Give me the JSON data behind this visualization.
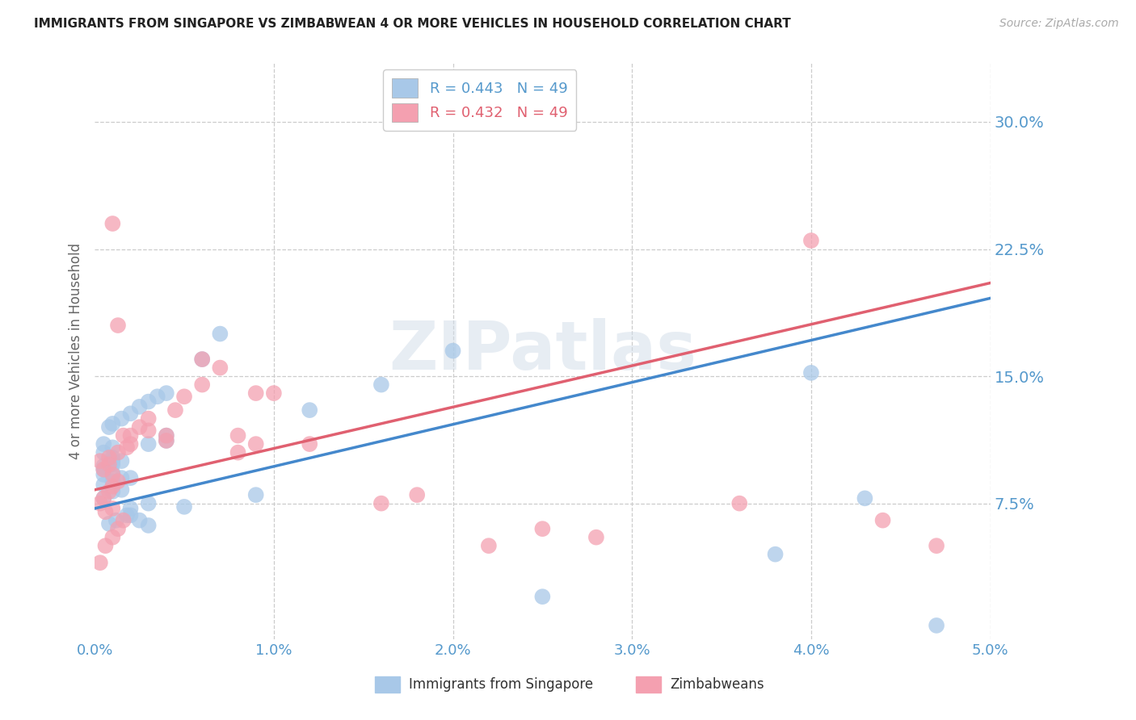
{
  "title": "IMMIGRANTS FROM SINGAPORE VS ZIMBABWEAN 4 OR MORE VEHICLES IN HOUSEHOLD CORRELATION CHART",
  "source": "Source: ZipAtlas.com",
  "ylabel": "4 or more Vehicles in Household",
  "legend_label_1": "Immigrants from Singapore",
  "legend_label_2": "Zimbabweans",
  "r1": 0.443,
  "n1": 49,
  "r2": 0.432,
  "n2": 49,
  "color1": "#a8c8e8",
  "color2": "#f4a0b0",
  "line_color1": "#4488cc",
  "line_color2": "#e06070",
  "tick_color": "#5599cc",
  "xlim": [
    0.0,
    0.05
  ],
  "ylim": [
    -0.005,
    0.335
  ],
  "x_ticks": [
    0.0,
    0.01,
    0.02,
    0.03,
    0.04,
    0.05
  ],
  "y_ticks_right": [
    0.075,
    0.15,
    0.225,
    0.3
  ],
  "background_color": "#ffffff",
  "grid_color": "#cccccc",
  "watermark": "ZIPatlas",
  "singapore_x": [
    0.0005,
    0.001,
    0.0015,
    0.0005,
    0.001,
    0.0015,
    0.002,
    0.0005,
    0.001,
    0.0005,
    0.0005,
    0.001,
    0.001,
    0.0015,
    0.001,
    0.0005,
    0.001,
    0.0005,
    0.0008,
    0.0012,
    0.0018,
    0.002,
    0.0025,
    0.003,
    0.0008,
    0.001,
    0.0015,
    0.002,
    0.0025,
    0.003,
    0.0035,
    0.004,
    0.002,
    0.003,
    0.003,
    0.004,
    0.004,
    0.005,
    0.006,
    0.007,
    0.009,
    0.012,
    0.016,
    0.02,
    0.025,
    0.038,
    0.04,
    0.043,
    0.047
  ],
  "singapore_y": [
    0.078,
    0.082,
    0.083,
    0.086,
    0.088,
    0.09,
    0.09,
    0.092,
    0.093,
    0.095,
    0.097,
    0.098,
    0.1,
    0.1,
    0.102,
    0.105,
    0.108,
    0.11,
    0.063,
    0.065,
    0.068,
    0.068,
    0.065,
    0.062,
    0.12,
    0.122,
    0.125,
    0.128,
    0.132,
    0.135,
    0.138,
    0.14,
    0.072,
    0.075,
    0.11,
    0.112,
    0.115,
    0.073,
    0.16,
    0.175,
    0.08,
    0.13,
    0.145,
    0.165,
    0.02,
    0.045,
    0.152,
    0.078,
    0.003
  ],
  "zimbabwe_x": [
    0.0003,
    0.0006,
    0.001,
    0.0013,
    0.0016,
    0.0006,
    0.001,
    0.0003,
    0.0005,
    0.0008,
    0.001,
    0.0013,
    0.001,
    0.0005,
    0.0008,
    0.0003,
    0.0008,
    0.0013,
    0.0018,
    0.002,
    0.001,
    0.0013,
    0.0016,
    0.002,
    0.0025,
    0.003,
    0.003,
    0.004,
    0.004,
    0.0045,
    0.005,
    0.006,
    0.006,
    0.007,
    0.008,
    0.008,
    0.009,
    0.009,
    0.01,
    0.012,
    0.016,
    0.018,
    0.022,
    0.025,
    0.028,
    0.036,
    0.04,
    0.044,
    0.047
  ],
  "zimbabwe_y": [
    0.04,
    0.05,
    0.055,
    0.06,
    0.065,
    0.07,
    0.072,
    0.075,
    0.078,
    0.082,
    0.085,
    0.088,
    0.092,
    0.095,
    0.098,
    0.1,
    0.102,
    0.105,
    0.108,
    0.11,
    0.24,
    0.18,
    0.115,
    0.115,
    0.12,
    0.118,
    0.125,
    0.112,
    0.115,
    0.13,
    0.138,
    0.145,
    0.16,
    0.155,
    0.105,
    0.115,
    0.14,
    0.11,
    0.14,
    0.11,
    0.075,
    0.08,
    0.05,
    0.06,
    0.055,
    0.075,
    0.23,
    0.065,
    0.05
  ]
}
